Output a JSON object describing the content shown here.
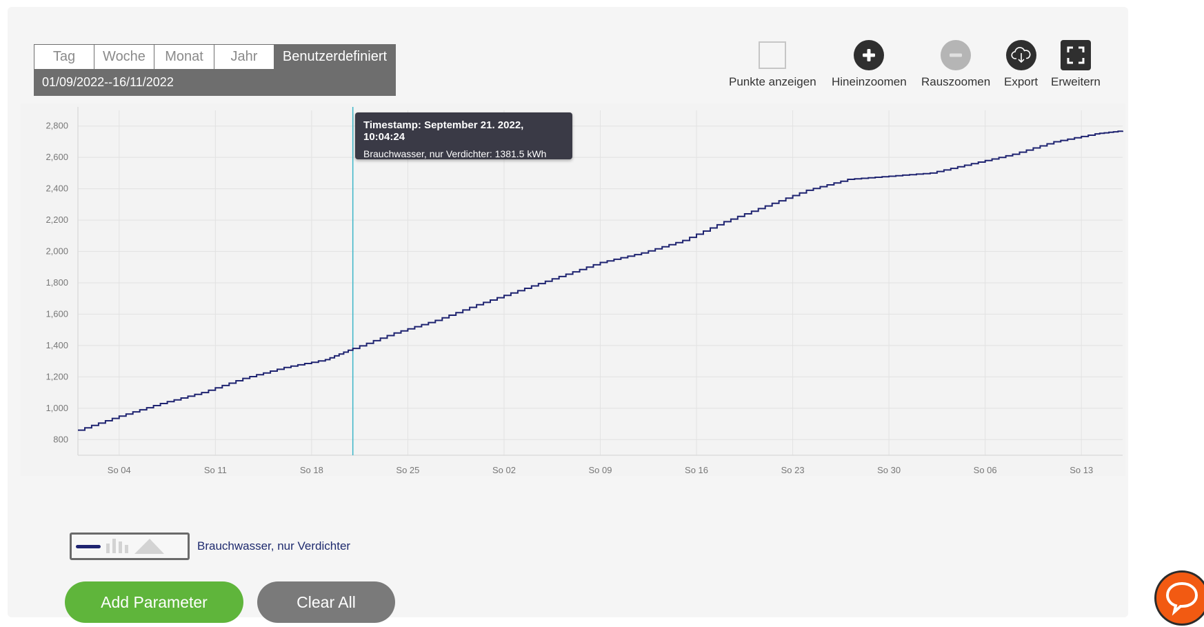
{
  "period": {
    "tabs": [
      {
        "label": "Tag"
      },
      {
        "label": "Woche"
      },
      {
        "label": "Monat"
      },
      {
        "label": "Jahr"
      },
      {
        "label": "Benutzerdefiniert",
        "active": true
      }
    ],
    "range": "01/09/2022--16/11/2022"
  },
  "toolbar": {
    "show_points": "Punkte anzeigen",
    "zoom_in": "Hineinzoomen",
    "zoom_out": "Rauszoomen",
    "export": "Export",
    "expand": "Erweitern"
  },
  "tooltip": {
    "title": "Timestamp: September 21. 2022, 10:04:24",
    "value": "Brauchwasser, nur Verdichter: 1381.5 kWh"
  },
  "legend": {
    "series_name": "Brauchwasser, nur Verdichter",
    "icons": [
      "line-icon",
      "bar-icon",
      "area-icon"
    ]
  },
  "buttons": {
    "add": "Add Parameter",
    "clear": "Clear All"
  },
  "colors": {
    "line": "#1e2370",
    "crosshair": "#3cb6c8",
    "add_button": "#5fb53b",
    "clear_button": "#7a7a7a",
    "chat": "#f25a12"
  },
  "chart_data": {
    "type": "line",
    "grid": true,
    "title": "",
    "xlabel": "",
    "ylabel": "",
    "ylim": [
      700,
      2900
    ],
    "y_ticks": [
      800,
      1000,
      1200,
      1400,
      1600,
      1800,
      2000,
      2200,
      2400,
      2600,
      2800
    ],
    "y_tick_labels": [
      "800",
      "1,000",
      "1,200",
      "1,400",
      "1,600",
      "1,800",
      "2,000",
      "2,200",
      "2,400",
      "2,600",
      "2,800"
    ],
    "x_ticks": [
      "2022-09-04",
      "2022-09-11",
      "2022-09-18",
      "2022-09-25",
      "2022-10-02",
      "2022-10-09",
      "2022-10-16",
      "2022-10-23",
      "2022-10-30",
      "2022-11-06",
      "2022-11-13"
    ],
    "x_tick_labels": [
      "So 04",
      "So 11",
      "So 18",
      "So 25",
      "So 02",
      "So 09",
      "So 16",
      "So 23",
      "So 30",
      "So 06",
      "So 13"
    ],
    "xlim": [
      "2022-09-01",
      "2022-11-16"
    ],
    "crosshair_x": "2022-09-21",
    "series": [
      {
        "name": "Brauchwasser, nur Verdichter",
        "x": [
          "2022-09-01",
          "2022-09-04",
          "2022-09-07",
          "2022-09-10",
          "2022-09-13",
          "2022-09-16",
          "2022-09-19",
          "2022-09-21",
          "2022-09-24",
          "2022-09-27",
          "2022-09-30",
          "2022-10-03",
          "2022-10-06",
          "2022-10-09",
          "2022-10-12",
          "2022-10-15",
          "2022-10-18",
          "2022-10-21",
          "2022-10-24",
          "2022-10-27",
          "2022-10-30",
          "2022-11-02",
          "2022-11-05",
          "2022-11-08",
          "2022-11-11",
          "2022-11-14",
          "2022-11-16"
        ],
        "y": [
          860,
          950,
          1030,
          1100,
          1190,
          1260,
          1310,
          1381.5,
          1480,
          1560,
          1660,
          1750,
          1840,
          1930,
          1990,
          2070,
          2190,
          2290,
          2390,
          2460,
          2480,
          2500,
          2560,
          2620,
          2700,
          2750,
          2770
        ]
      }
    ]
  }
}
